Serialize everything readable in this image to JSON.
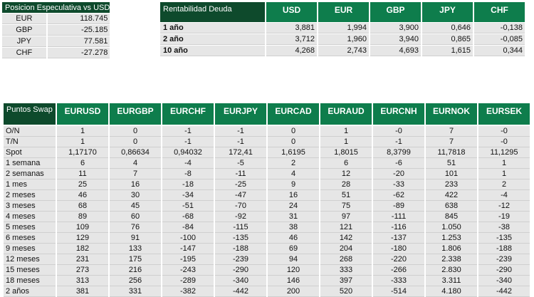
{
  "posicion": {
    "title": "Posicion Especulativa vs USD",
    "rows": [
      {
        "currency": "EUR",
        "value": "118.745"
      },
      {
        "currency": "GBP",
        "value": "-25.185"
      },
      {
        "currency": "JPY",
        "value": "77.581"
      },
      {
        "currency": "CHF",
        "value": "-27.278"
      }
    ]
  },
  "rentabilidad": {
    "title": "Rentabilidad Deuda",
    "columns": [
      "USD",
      "EUR",
      "GBP",
      "JPY",
      "CHF"
    ],
    "rows": [
      {
        "label": "1 año",
        "values": [
          "3,881",
          "1,994",
          "3,900",
          "0,646",
          "-0,138"
        ]
      },
      {
        "label": "2 año",
        "values": [
          "3,712",
          "1,960",
          "3,940",
          "0,865",
          "-0,085"
        ]
      },
      {
        "label": "10 año",
        "values": [
          "4,268",
          "2,743",
          "4,693",
          "1,615",
          "0,344"
        ]
      }
    ]
  },
  "swap": {
    "title": "Puntos Swap",
    "columns": [
      "EURUSD",
      "EURGBP",
      "EURCHF",
      "EURJPY",
      "EURCAD",
      "EURAUD",
      "EURCNH",
      "EURNOK",
      "EURSEK"
    ],
    "rows": [
      {
        "label": "O/N",
        "values": [
          "1",
          "0",
          "-1",
          "-1",
          "0",
          "1",
          "-0",
          "7",
          "-0"
        ]
      },
      {
        "label": "T/N",
        "values": [
          "1",
          "0",
          "-1",
          "-1",
          "0",
          "1",
          "-1",
          "7",
          "-0"
        ]
      },
      {
        "label": "Spot",
        "values": [
          "1,17170",
          "0,86634",
          "0,94032",
          "172,41",
          "1,6195",
          "1,8015",
          "8,3799",
          "11,7818",
          "11,1295"
        ]
      },
      {
        "label": "1 semana",
        "values": [
          "6",
          "4",
          "-4",
          "-5",
          "2",
          "6",
          "-6",
          "51",
          "1"
        ]
      },
      {
        "label": "2 semanas",
        "values": [
          "11",
          "7",
          "-8",
          "-11",
          "4",
          "12",
          "-20",
          "101",
          "1"
        ]
      },
      {
        "label": "1 mes",
        "values": [
          "25",
          "16",
          "-18",
          "-25",
          "9",
          "28",
          "-33",
          "233",
          "2"
        ]
      },
      {
        "label": "2 meses",
        "values": [
          "46",
          "30",
          "-34",
          "-47",
          "16",
          "51",
          "-62",
          "422",
          "-4"
        ]
      },
      {
        "label": "3 meses",
        "values": [
          "68",
          "45",
          "-51",
          "-70",
          "24",
          "75",
          "-89",
          "638",
          "-12"
        ]
      },
      {
        "label": "4 meses",
        "values": [
          "89",
          "60",
          "-68",
          "-92",
          "31",
          "97",
          "-111",
          "845",
          "-19"
        ]
      },
      {
        "label": "5 meses",
        "values": [
          "109",
          "76",
          "-84",
          "-115",
          "38",
          "121",
          "-116",
          "1.050",
          "-38"
        ]
      },
      {
        "label": "6 meses",
        "values": [
          "129",
          "91",
          "-100",
          "-135",
          "46",
          "142",
          "-137",
          "1.253",
          "-135"
        ]
      },
      {
        "label": "9 meses",
        "values": [
          "182",
          "133",
          "-147",
          "-188",
          "69",
          "204",
          "-180",
          "1.806",
          "-188"
        ]
      },
      {
        "label": "12 meses",
        "values": [
          "231",
          "175",
          "-195",
          "-239",
          "94",
          "268",
          "-220",
          "2.338",
          "-239"
        ]
      },
      {
        "label": "15 meses",
        "values": [
          "273",
          "216",
          "-243",
          "-290",
          "120",
          "333",
          "-266",
          "2.830",
          "-290"
        ]
      },
      {
        "label": "18 meses",
        "values": [
          "313",
          "256",
          "-289",
          "-340",
          "146",
          "397",
          "-333",
          "3.311",
          "-340"
        ]
      },
      {
        "label": "2 años",
        "values": [
          "381",
          "331",
          "-382",
          "-442",
          "200",
          "520",
          "-514",
          "4.180",
          "-442"
        ]
      }
    ]
  }
}
